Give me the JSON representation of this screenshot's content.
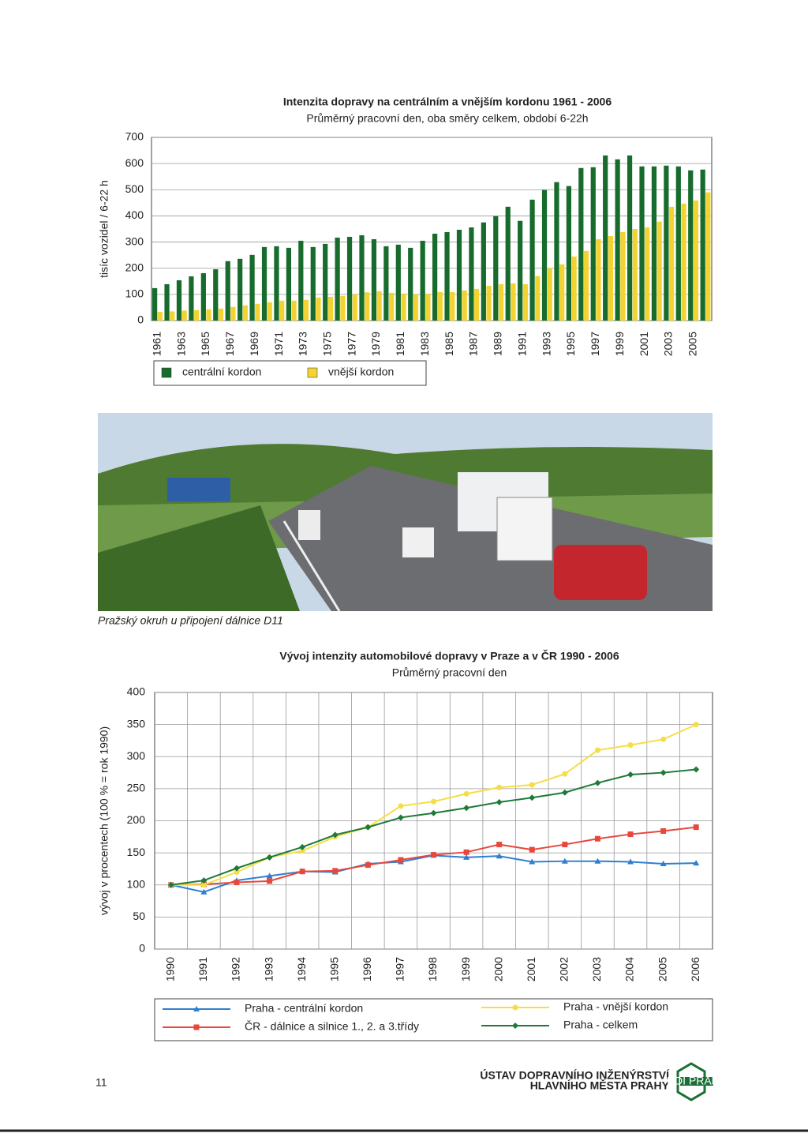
{
  "chart_data": [
    {
      "type": "bar",
      "title": "Intenzita dopravy na centrálním a vnějším kordonu 1961 - 2006",
      "subtitle": "Průměrný pracovní den, oba směry celkem, období 6-22h",
      "ylabel": "tisíc vozidel / 6-22 h",
      "categories": [
        "1961",
        null,
        "1963",
        null,
        "1965",
        null,
        "1967",
        null,
        "1969",
        null,
        "1971",
        null,
        "1973",
        null,
        "1975",
        null,
        "1977",
        null,
        "1979",
        null,
        "1981",
        null,
        "1983",
        null,
        "1985",
        null,
        "1987",
        null,
        "1989",
        null,
        "1991",
        null,
        "1993",
        null,
        "1995",
        null,
        "1997",
        null,
        "1999",
        null,
        "2001",
        null,
        "2003",
        null,
        "2005",
        null
      ],
      "series": [
        {
          "name": "centrální kordon",
          "color": "#176b2c",
          "values": [
            124,
            139,
            154,
            169,
            181,
            196,
            227,
            236,
            251,
            281,
            284,
            278,
            305,
            281,
            293,
            317,
            320,
            326,
            311,
            284,
            290,
            278,
            305,
            332,
            338,
            347,
            356,
            375,
            399,
            435,
            381,
            462,
            499,
            529,
            514,
            583,
            586,
            631,
            616,
            631,
            589,
            589,
            592,
            589,
            574,
            577
          ]
        },
        {
          "name": "vnější kordon",
          "color": "#f3d332",
          "values": [
            33,
            35,
            38,
            40,
            43,
            46,
            52,
            58,
            64,
            70,
            76,
            76,
            79,
            88,
            91,
            94,
            100,
            108,
            112,
            106,
            103,
            100,
            103,
            109,
            109,
            115,
            121,
            133,
            139,
            142,
            139,
            170,
            200,
            215,
            245,
            266,
            311,
            323,
            338,
            350,
            356,
            378,
            435,
            447,
            459,
            490
          ]
        }
      ],
      "ylim": [
        0,
        700
      ],
      "yticks": [
        0,
        100,
        200,
        300,
        400,
        500,
        600,
        700
      ],
      "grid": true,
      "legend": "bottom"
    },
    {
      "type": "line",
      "title": "Vývoj intenzity automobilové dopravy v Praze a v ČR 1990 - 2006",
      "subtitle": "Průměrný pracovní den",
      "ylabel": "vývoj v procentech (100 % = rok 1990)",
      "categories": [
        "1990",
        "1991",
        "1992",
        "1993",
        "1994",
        "1995",
        "1996",
        "1997",
        "1998",
        "1999",
        "2000",
        "2001",
        "2002",
        "2003",
        "2004",
        "2005",
        "2006"
      ],
      "series": [
        {
          "name": "Praha - centrální kordon",
          "color": "#2f7fd0",
          "marker": "triangle",
          "values": [
            100,
            89,
            107,
            114,
            121,
            120,
            133,
            136,
            146,
            143,
            145,
            136,
            137,
            137,
            136,
            133,
            134
          ]
        },
        {
          "name": "ČR - dálnice a silnice 1., 2. a 3.třídy",
          "color": "#e8473c",
          "marker": "square",
          "values": [
            100,
            101,
            104,
            106,
            121,
            122,
            131,
            139,
            147,
            151,
            163,
            155,
            163,
            172,
            179,
            184,
            190
          ]
        },
        {
          "name": "Praha - vnější kordon",
          "color": "#f5de45",
          "marker": "circle",
          "values": [
            100,
            100,
            120,
            143,
            153,
            175,
            190,
            223,
            230,
            242,
            252,
            256,
            273,
            310,
            318,
            327,
            350
          ]
        },
        {
          "name": "Praha - celkem",
          "color": "#1f7a3a",
          "marker": "diamond",
          "values": [
            100,
            107,
            126,
            143,
            159,
            178,
            190,
            205,
            212,
            220,
            229,
            236,
            244,
            259,
            272,
            275,
            280
          ]
        }
      ],
      "ylim": [
        0,
        400
      ],
      "yticks": [
        0,
        50,
        100,
        150,
        200,
        250,
        300,
        350,
        400
      ],
      "grid": true,
      "legend": "bottom"
    }
  ],
  "caption": "Pražský okruh u připojení dálnice D11",
  "page_number": "11",
  "footer": {
    "line1": "ÚSTAV DOPRAVNÍHO INŽENÝRSTVÍ",
    "line2": "HLAVNÍHO MĚSTA PRAHY",
    "logo": "ÚDI PRAHA"
  }
}
